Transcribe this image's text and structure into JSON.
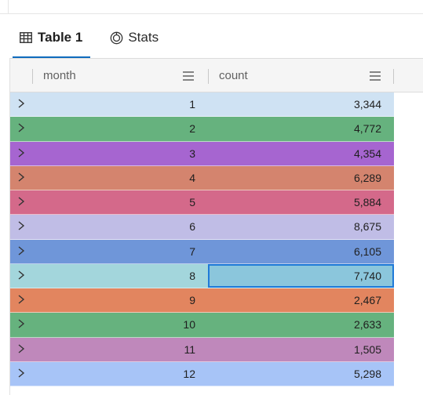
{
  "tabs": [
    {
      "label": "Table 1",
      "icon": "table-icon",
      "active": true
    },
    {
      "label": "Stats",
      "icon": "stats-icon",
      "active": false
    }
  ],
  "columns": [
    {
      "label": "month",
      "menu_icon": "column-menu-icon"
    },
    {
      "label": "count",
      "menu_icon": "column-menu-icon"
    }
  ],
  "rows": [
    {
      "month": "1",
      "count": "3,344",
      "color": "#cfe2f3"
    },
    {
      "month": "2",
      "count": "4,772",
      "color": "#66b27e"
    },
    {
      "month": "3",
      "count": "4,354",
      "color": "#a665d0"
    },
    {
      "month": "4",
      "count": "6,289",
      "color": "#d4846e"
    },
    {
      "month": "5",
      "count": "5,884",
      "color": "#d4698a"
    },
    {
      "month": "6",
      "count": "8,675",
      "color": "#c0bde6"
    },
    {
      "month": "7",
      "count": "6,105",
      "color": "#6f96d9"
    },
    {
      "month": "8",
      "count": "7,740",
      "color": "#a3d6dc",
      "selected": true
    },
    {
      "month": "9",
      "count": "2,467",
      "color": "#e2855f"
    },
    {
      "month": "10",
      "count": "2,633",
      "color": "#66b27e"
    },
    {
      "month": "11",
      "count": "1,505",
      "color": "#bf88bb"
    },
    {
      "month": "12",
      "count": "5,298",
      "color": "#a7c4f7"
    }
  ],
  "colors": {
    "accent": "#0f6cbd",
    "selection_border": "#1f7ad8",
    "selection_fill": "#8bc6dc"
  }
}
